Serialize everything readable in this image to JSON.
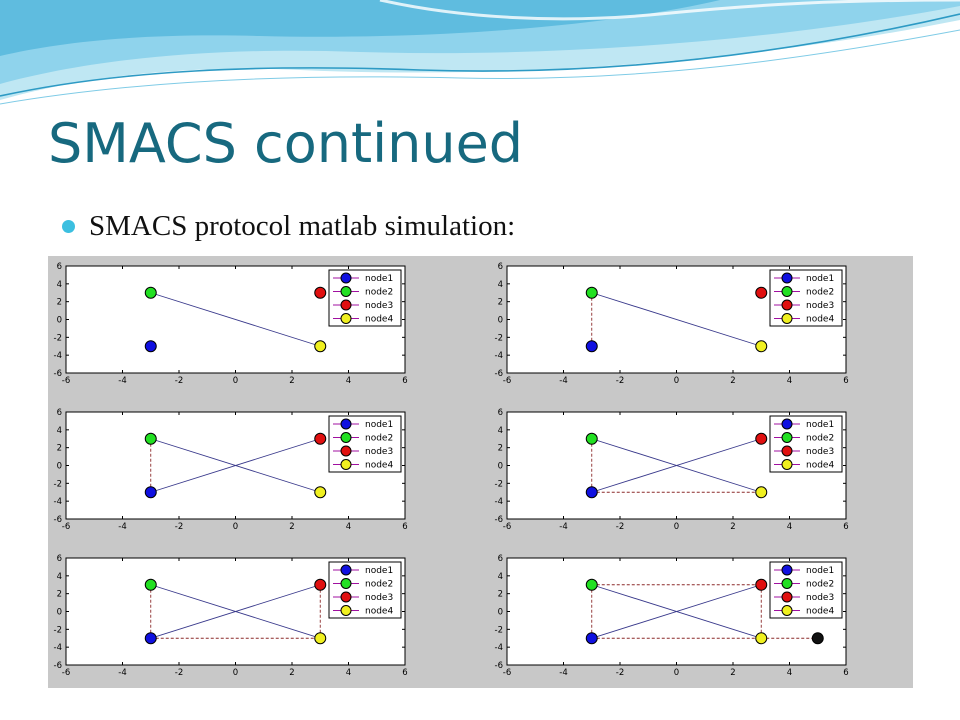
{
  "slide": {
    "title": "SMACS continued",
    "bullet": "SMACS protocol matlab simulation:"
  },
  "colors": {
    "title": "#17697f",
    "bullet": "#3cbfe0",
    "panel_background": "#c8c8c8",
    "edge_solid": "#3a3a8c",
    "edge_dashed": "#8b2a2a"
  },
  "chart_data": [
    {
      "type": "scatter",
      "xlim": [
        -6,
        6
      ],
      "ylim": [
        -6,
        6
      ],
      "x_ticks": [
        -6,
        -4,
        -2,
        0,
        2,
        4,
        6
      ],
      "y_ticks": [
        6,
        4,
        2,
        0,
        -2,
        -4,
        -6
      ],
      "legend": [
        "node1",
        "node2",
        "node3",
        "node4"
      ],
      "legend_position": "top-right",
      "nodes": [
        {
          "name": "node1",
          "x": -3,
          "y": -3,
          "color": "#1010e0"
        },
        {
          "name": "node2",
          "x": -3,
          "y": 3,
          "color": "#22e022"
        },
        {
          "name": "node3",
          "x": 3,
          "y": 3,
          "color": "#e01010"
        },
        {
          "name": "node4",
          "x": 3,
          "y": -3,
          "color": "#f0f020"
        }
      ],
      "edges": [
        {
          "from": [
            -3,
            3
          ],
          "to": [
            3,
            -3
          ],
          "style": "solid"
        }
      ]
    },
    {
      "type": "scatter",
      "xlim": [
        -6,
        6
      ],
      "ylim": [
        -6,
        6
      ],
      "x_ticks": [
        -6,
        -4,
        -2,
        0,
        2,
        4,
        6
      ],
      "y_ticks": [
        6,
        4,
        2,
        0,
        -2,
        -4,
        -6
      ],
      "legend": [
        "node1",
        "node2",
        "node3",
        "node4"
      ],
      "legend_position": "top-right",
      "nodes": [
        {
          "name": "node1",
          "x": -3,
          "y": -3,
          "color": "#1010e0"
        },
        {
          "name": "node2",
          "x": -3,
          "y": 3,
          "color": "#22e022"
        },
        {
          "name": "node3",
          "x": 3,
          "y": 3,
          "color": "#e01010"
        },
        {
          "name": "node4",
          "x": 3,
          "y": -3,
          "color": "#f0f020"
        }
      ],
      "edges": [
        {
          "from": [
            -3,
            3
          ],
          "to": [
            3,
            -3
          ],
          "style": "solid"
        },
        {
          "from": [
            -3,
            3
          ],
          "to": [
            -3,
            -3
          ],
          "style": "dashed"
        }
      ]
    },
    {
      "type": "scatter",
      "xlim": [
        -6,
        6
      ],
      "ylim": [
        -6,
        6
      ],
      "x_ticks": [
        -6,
        -4,
        -2,
        0,
        2,
        4,
        6
      ],
      "y_ticks": [
        6,
        4,
        2,
        0,
        -2,
        -4,
        -6
      ],
      "legend": [
        "node1",
        "node2",
        "node3",
        "node4"
      ],
      "legend_position": "top-right",
      "nodes": [
        {
          "name": "node1",
          "x": -3,
          "y": -3,
          "color": "#1010e0"
        },
        {
          "name": "node2",
          "x": -3,
          "y": 3,
          "color": "#22e022"
        },
        {
          "name": "node3",
          "x": 3,
          "y": 3,
          "color": "#e01010"
        },
        {
          "name": "node4",
          "x": 3,
          "y": -3,
          "color": "#f0f020"
        }
      ],
      "edges": [
        {
          "from": [
            -3,
            3
          ],
          "to": [
            3,
            -3
          ],
          "style": "solid"
        },
        {
          "from": [
            -3,
            -3
          ],
          "to": [
            3,
            3
          ],
          "style": "solid"
        },
        {
          "from": [
            -3,
            3
          ],
          "to": [
            -3,
            -3
          ],
          "style": "dashed"
        }
      ]
    },
    {
      "type": "scatter",
      "xlim": [
        -6,
        6
      ],
      "ylim": [
        -6,
        6
      ],
      "x_ticks": [
        -6,
        -4,
        -2,
        0,
        2,
        4,
        6
      ],
      "y_ticks": [
        6,
        4,
        2,
        0,
        -2,
        -4,
        -6
      ],
      "legend": [
        "node1",
        "node2",
        "node3",
        "node4"
      ],
      "legend_position": "top-right",
      "nodes": [
        {
          "name": "node1",
          "x": -3,
          "y": -3,
          "color": "#1010e0"
        },
        {
          "name": "node2",
          "x": -3,
          "y": 3,
          "color": "#22e022"
        },
        {
          "name": "node3",
          "x": 3,
          "y": 3,
          "color": "#e01010"
        },
        {
          "name": "node4",
          "x": 3,
          "y": -3,
          "color": "#f0f020"
        }
      ],
      "edges": [
        {
          "from": [
            -3,
            3
          ],
          "to": [
            3,
            -3
          ],
          "style": "solid"
        },
        {
          "from": [
            -3,
            -3
          ],
          "to": [
            3,
            3
          ],
          "style": "solid"
        },
        {
          "from": [
            -3,
            3
          ],
          "to": [
            -3,
            -3
          ],
          "style": "dashed"
        },
        {
          "from": [
            -3,
            -3
          ],
          "to": [
            3,
            -3
          ],
          "style": "dashed"
        }
      ]
    },
    {
      "type": "scatter",
      "xlim": [
        -6,
        6
      ],
      "ylim": [
        -6,
        6
      ],
      "x_ticks": [
        -6,
        -4,
        -2,
        0,
        2,
        4,
        6
      ],
      "y_ticks": [
        6,
        4,
        2,
        0,
        -2,
        -4,
        -6
      ],
      "legend": [
        "node1",
        "node2",
        "node3",
        "node4"
      ],
      "legend_position": "top-right",
      "nodes": [
        {
          "name": "node1",
          "x": -3,
          "y": -3,
          "color": "#1010e0"
        },
        {
          "name": "node2",
          "x": -3,
          "y": 3,
          "color": "#22e022"
        },
        {
          "name": "node3",
          "x": 3,
          "y": 3,
          "color": "#e01010"
        },
        {
          "name": "node4",
          "x": 3,
          "y": -3,
          "color": "#f0f020"
        }
      ],
      "edges": [
        {
          "from": [
            -3,
            3
          ],
          "to": [
            3,
            -3
          ],
          "style": "solid"
        },
        {
          "from": [
            -3,
            -3
          ],
          "to": [
            3,
            3
          ],
          "style": "solid"
        },
        {
          "from": [
            -3,
            3
          ],
          "to": [
            -3,
            -3
          ],
          "style": "dashed"
        },
        {
          "from": [
            -3,
            -3
          ],
          "to": [
            3,
            -3
          ],
          "style": "dashed"
        },
        {
          "from": [
            3,
            3
          ],
          "to": [
            3,
            -3
          ],
          "style": "dashed"
        }
      ]
    },
    {
      "type": "scatter",
      "xlim": [
        -6,
        6
      ],
      "ylim": [
        -6,
        6
      ],
      "x_ticks": [
        -6,
        -4,
        -2,
        0,
        2,
        4,
        6
      ],
      "y_ticks": [
        6,
        4,
        2,
        0,
        -2,
        -4,
        -6
      ],
      "legend": [
        "node1",
        "node2",
        "node3",
        "node4"
      ],
      "legend_position": "top-right",
      "nodes": [
        {
          "name": "node1",
          "x": -3,
          "y": -3,
          "color": "#1010e0"
        },
        {
          "name": "node2",
          "x": -3,
          "y": 3,
          "color": "#22e022"
        },
        {
          "name": "node3",
          "x": 3,
          "y": 3,
          "color": "#e01010"
        },
        {
          "name": "node4",
          "x": 3,
          "y": -3,
          "color": "#f0f020"
        },
        {
          "name": "",
          "x": 5,
          "y": -3,
          "color": "#111111"
        }
      ],
      "edges": [
        {
          "from": [
            -3,
            3
          ],
          "to": [
            3,
            -3
          ],
          "style": "solid"
        },
        {
          "from": [
            -3,
            -3
          ],
          "to": [
            3,
            3
          ],
          "style": "solid"
        },
        {
          "from": [
            -3,
            3
          ],
          "to": [
            -3,
            -3
          ],
          "style": "dashed"
        },
        {
          "from": [
            -3,
            -3
          ],
          "to": [
            3,
            -3
          ],
          "style": "dashed"
        },
        {
          "from": [
            3,
            3
          ],
          "to": [
            3,
            -3
          ],
          "style": "dashed"
        },
        {
          "from": [
            -3,
            3
          ],
          "to": [
            3,
            3
          ],
          "style": "dashed"
        },
        {
          "from": [
            3,
            -3
          ],
          "to": [
            5,
            -3
          ],
          "style": "dashed"
        }
      ]
    }
  ]
}
